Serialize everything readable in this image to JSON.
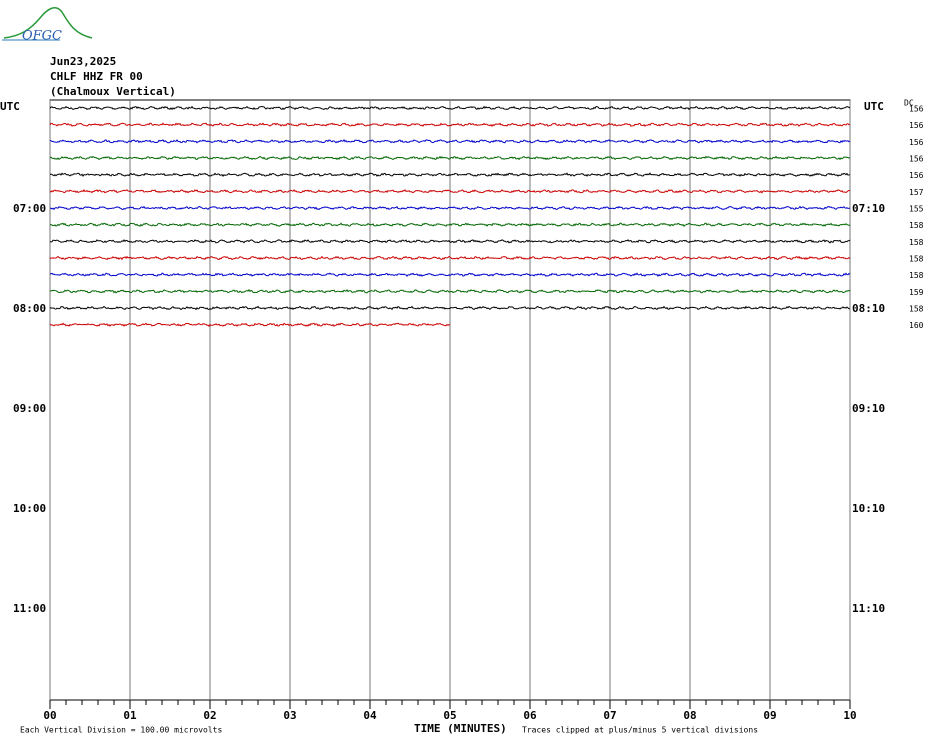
{
  "logo": "OFGC",
  "header": {
    "date": "Jun23,2025",
    "station": "CHLF HHZ FR 00",
    "location": "(Chalmoux Vertical)"
  },
  "chart_data": {
    "type": "helicorder",
    "x_label": "TIME (MINUTES)",
    "left_axis_title": "UTC",
    "right_axis_title": "UTC",
    "dc_title": "DC",
    "xlim": [
      0,
      10
    ],
    "xticks": [
      {
        "value": 0,
        "label": "00"
      },
      {
        "value": 1,
        "label": "01"
      },
      {
        "value": 2,
        "label": "02"
      },
      {
        "value": 3,
        "label": "03"
      },
      {
        "value": 4,
        "label": "04"
      },
      {
        "value": 5,
        "label": "05"
      },
      {
        "value": 6,
        "label": "06"
      },
      {
        "value": 7,
        "label": "07"
      },
      {
        "value": 8,
        "label": "08"
      },
      {
        "value": 9,
        "label": "09"
      },
      10
    ],
    "grid": true,
    "left_hour_labels": [
      "07:00",
      "08:00",
      "09:00",
      "10:00",
      "11:00"
    ],
    "right_hour_labels": [
      "07:10",
      "08:10",
      "09:10",
      "10:10",
      "11:10"
    ],
    "traces": [
      {
        "color": "#000000",
        "dc": 156
      },
      {
        "color": "#cc0000",
        "dc": 156
      },
      {
        "color": "#0000cc",
        "dc": 156
      },
      {
        "color": "#006600",
        "dc": 156
      },
      {
        "color": "#000000",
        "dc": 156
      },
      {
        "color": "#cc0000",
        "dc": 157
      },
      {
        "color": "#0000cc",
        "dc": 155
      },
      {
        "color": "#006600",
        "dc": 158
      },
      {
        "color": "#000000",
        "dc": 158
      },
      {
        "color": "#cc0000",
        "dc": 158
      },
      {
        "color": "#0000cc",
        "dc": 158
      },
      {
        "color": "#006600",
        "dc": 159
      },
      {
        "color": "#000000",
        "dc": 158
      },
      {
        "color": "#cc0000",
        "dc": 160,
        "end": 5
      }
    ],
    "footer_left": "Each Vertical Division =  100.00 microvolts",
    "footer_right": "Traces clipped at plus/minus 5 vertical divisions"
  }
}
